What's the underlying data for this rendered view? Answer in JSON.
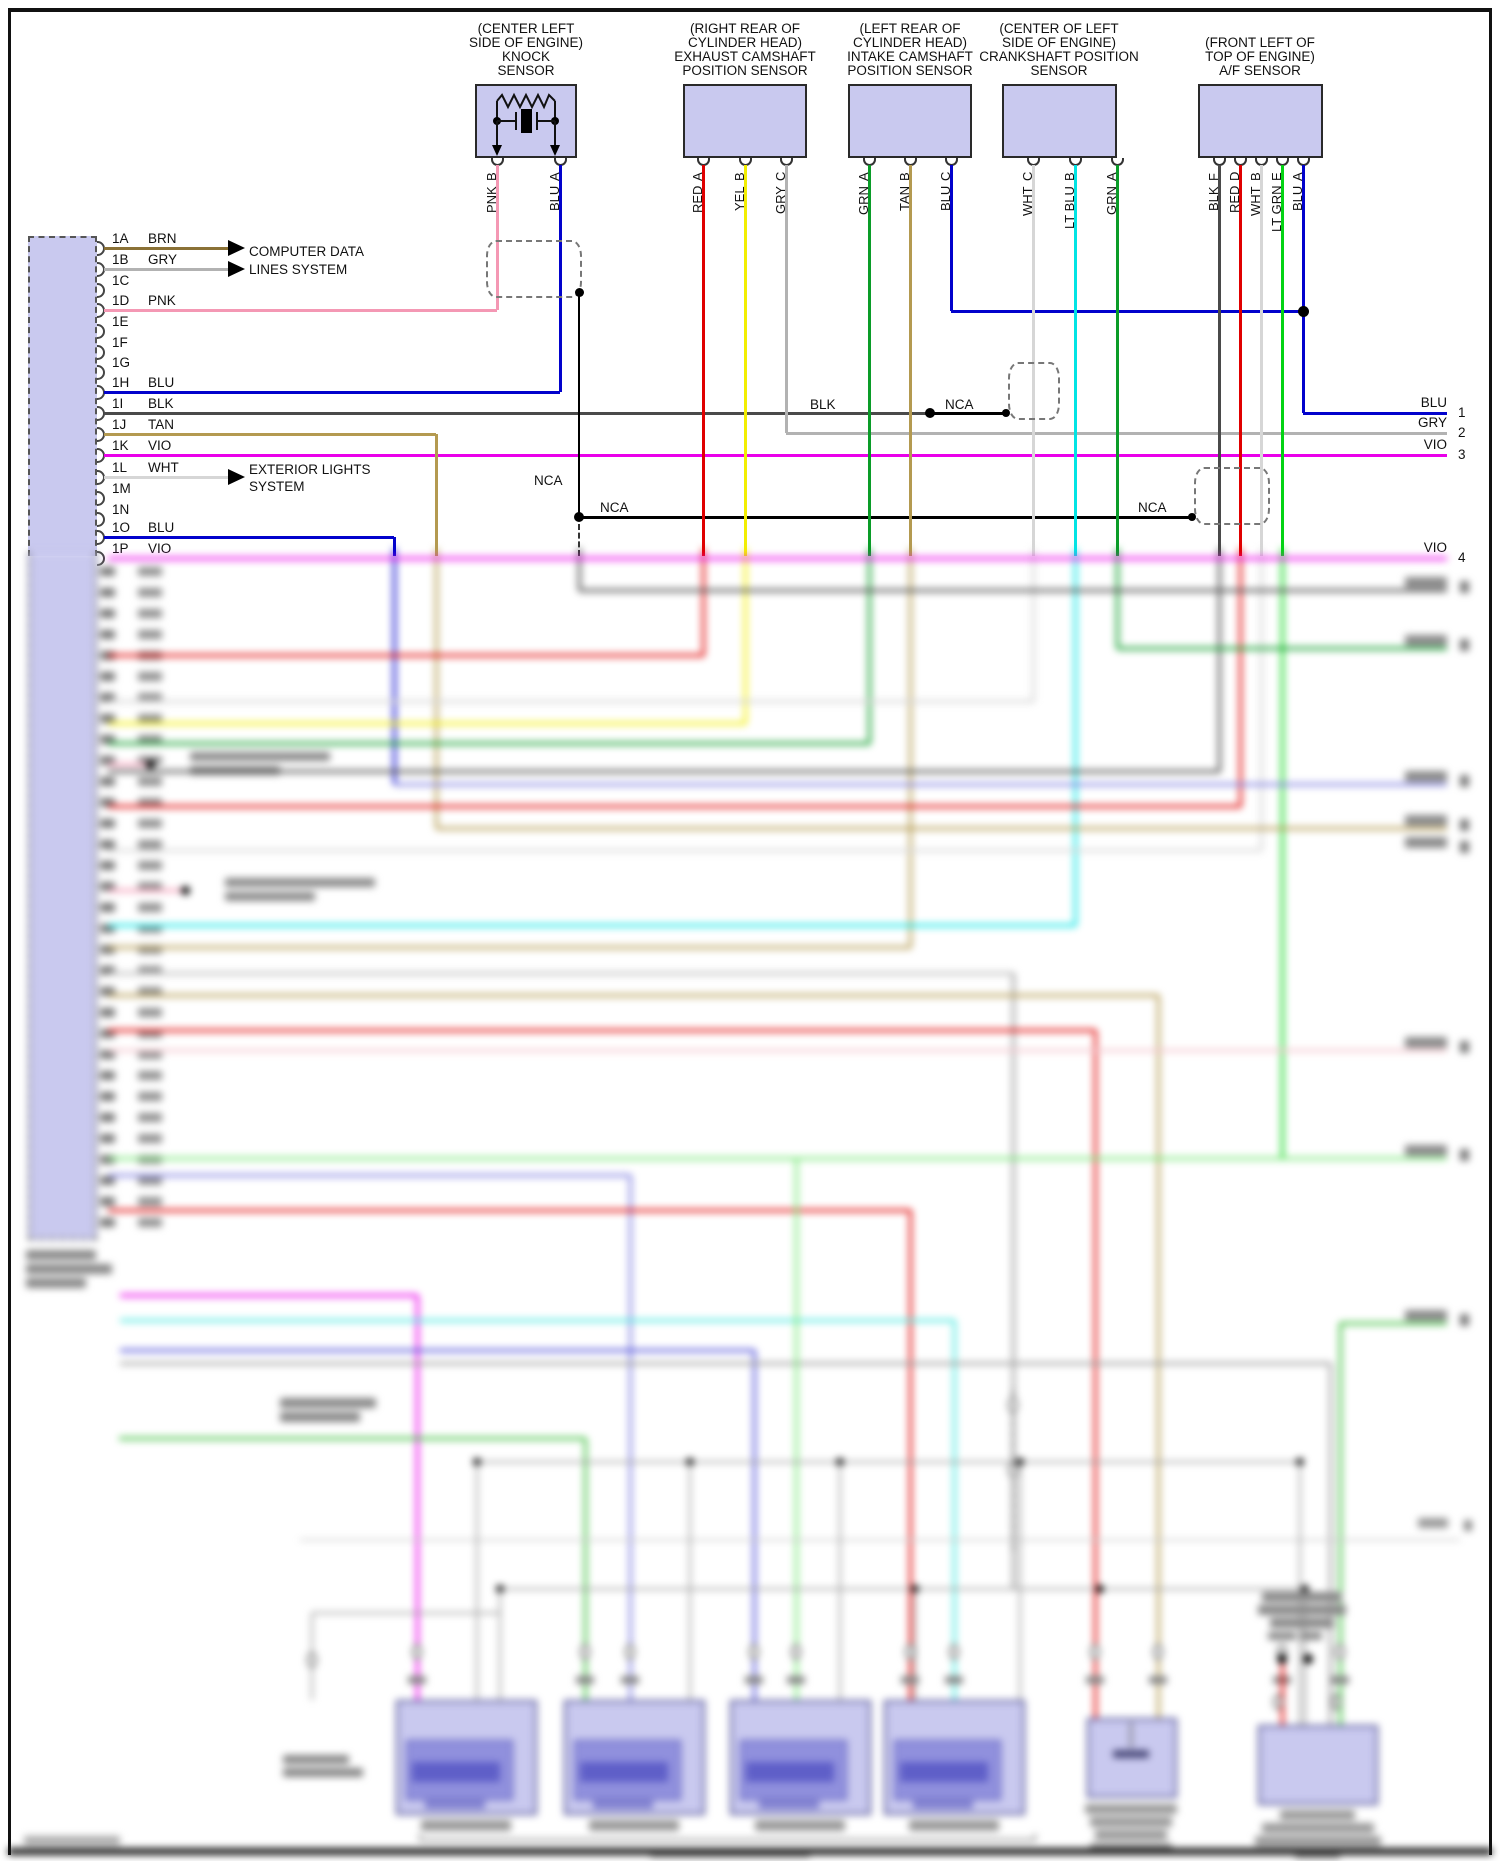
{
  "diagram": {
    "sensors": [
      {
        "title_lines": [
          "(CENTER LEFT",
          "SIDE OF ENGINE)",
          "KNOCK",
          "SENSOR"
        ],
        "pins": [
          {
            "pin": "B",
            "wire": "PNK"
          },
          {
            "pin": "A",
            "wire": "BLU"
          }
        ]
      },
      {
        "title_lines": [
          "(RIGHT REAR OF",
          "CYLINDER HEAD)",
          "EXHAUST CAMSHAFT",
          "POSITION SENSOR"
        ],
        "pins": [
          {
            "pin": "A",
            "wire": "RED"
          },
          {
            "pin": "B",
            "wire": "YEL"
          },
          {
            "pin": "C",
            "wire": "GRY"
          }
        ]
      },
      {
        "title_lines": [
          "(LEFT REAR OF",
          "CYLINDER HEAD)",
          "INTAKE CAMSHAFT",
          "POSITION SENSOR"
        ],
        "pins": [
          {
            "pin": "A",
            "wire": "GRN"
          },
          {
            "pin": "B",
            "wire": "TAN"
          },
          {
            "pin": "C",
            "wire": "BLU"
          }
        ]
      },
      {
        "title_lines": [
          "(CENTER OF LEFT",
          "SIDE OF ENGINE)",
          "CRANKSHAFT POSITION",
          "SENSOR"
        ],
        "pins": [
          {
            "pin": "C",
            "wire": "WHT"
          },
          {
            "pin": "B",
            "wire": "LT BLU"
          },
          {
            "pin": "A",
            "wire": "GRN"
          }
        ]
      },
      {
        "title_lines": [
          "(FRONT LEFT OF",
          "TOP OF ENGINE)",
          "A/F SENSOR"
        ],
        "pins": [
          {
            "pin": "F",
            "wire": "BLK"
          },
          {
            "pin": "D",
            "wire": "RED"
          },
          {
            "pin": "B",
            "wire": "WHT"
          },
          {
            "pin": "E",
            "wire": "LT GRN"
          },
          {
            "pin": "A",
            "wire": "BLU"
          }
        ]
      }
    ],
    "connector": {
      "pins": [
        {
          "id": "1A",
          "wire": "BRN"
        },
        {
          "id": "1B",
          "wire": "GRY"
        },
        {
          "id": "1C",
          "wire": ""
        },
        {
          "id": "1D",
          "wire": "PNK"
        },
        {
          "id": "1E",
          "wire": ""
        },
        {
          "id": "1F",
          "wire": ""
        },
        {
          "id": "1G",
          "wire": ""
        },
        {
          "id": "1H",
          "wire": "BLU"
        },
        {
          "id": "1I",
          "wire": "BLK"
        },
        {
          "id": "1J",
          "wire": "TAN"
        },
        {
          "id": "1K",
          "wire": "VIO"
        },
        {
          "id": "1L",
          "wire": "WHT"
        },
        {
          "id": "1M",
          "wire": ""
        },
        {
          "id": "1N",
          "wire": ""
        },
        {
          "id": "1O",
          "wire": "BLU"
        },
        {
          "id": "1P",
          "wire": "VIO"
        }
      ]
    },
    "system_arrows": [
      {
        "lines": [
          "COMPUTER DATA",
          "LINES SYSTEM"
        ]
      },
      {
        "lines": [
          "EXTERIOR LIGHTS",
          "SYSTEM"
        ]
      }
    ],
    "inline_labels": [
      {
        "text": "BLK"
      },
      {
        "text": "NCA"
      },
      {
        "text": "NCA"
      },
      {
        "text": "NCA"
      },
      {
        "text": "NCA"
      }
    ],
    "right_terminals": [
      {
        "wire": "BLU",
        "num": "1"
      },
      {
        "wire": "GRY",
        "num": "2"
      },
      {
        "wire": "VIO",
        "num": "3"
      },
      {
        "wire": "VIO",
        "num": "4"
      }
    ],
    "colors": {
      "BRN": "#8a7136",
      "GRY": "#b2b2b2",
      "PNK": "#f498b4",
      "BLU": "#0202cc",
      "BLK": "#4a4a4a",
      "TAN": "#b49a50",
      "VIO": "#ea00ea",
      "WHT": "#d6d6d6",
      "RED": "#e00000",
      "YEL": "#f2ee02",
      "GRN": "#0a9c28",
      "LT BLU": "#02e4e4",
      "LT GRN": "#04d414",
      "box_fill": "#c9c9ef",
      "box_inner": "#9090dd",
      "box_inner_dark": "#5f5fc8",
      "nca": "#000000"
    }
  }
}
